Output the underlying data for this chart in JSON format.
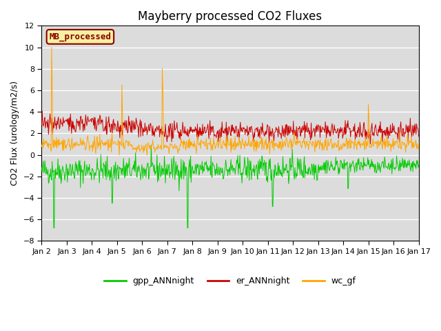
{
  "title": "Mayberry processed CO2 Fluxes",
  "ylabel": "CO2 Flux (urology/m2/s)",
  "ylim": [
    -8,
    12
  ],
  "yticks": [
    -8,
    -6,
    -4,
    -2,
    0,
    2,
    4,
    6,
    8,
    10,
    12
  ],
  "xtick_labels": [
    "Jan 2",
    "Jan 3",
    "Jan 4",
    "Jan 5",
    "Jan 6",
    "Jan 7",
    "Jan 8",
    "Jan 9",
    "Jan 10",
    "Jan 11",
    "Jan 12",
    "Jan 13",
    "Jan 14",
    "Jan 15",
    "Jan 16",
    "Jan 17"
  ],
  "n_days": 16,
  "bg_color": "#dcdcdc",
  "fig_color": "#ffffff",
  "legend_label": "MB_processed",
  "legend_bg": "#f5f0a0",
  "legend_border": "#8b0000",
  "gpp_color": "#00cc00",
  "er_color": "#cc0000",
  "wc_color": "#ffa500",
  "legend_entries": [
    "gpp_ANNnight",
    "er_ANNnight",
    "wc_gf"
  ],
  "n_points": 720,
  "seed": 42
}
